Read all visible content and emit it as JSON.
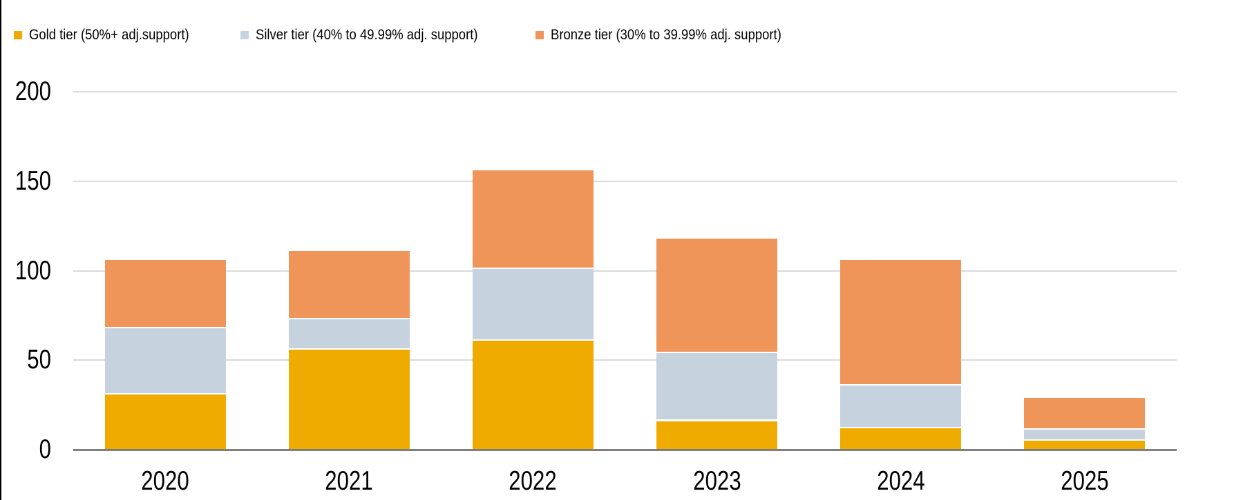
{
  "chart_data": {
    "type": "bar",
    "stacked": true,
    "title": "",
    "xlabel": "",
    "ylabel": "",
    "categories": [
      "2020",
      "2021",
      "2022",
      "2023",
      "2024",
      "2025"
    ],
    "series": [
      {
        "name": "Gold tier (50%+ adj.support)",
        "color": "#F0AB00",
        "values": [
          31,
          56,
          61,
          16,
          12,
          5
        ]
      },
      {
        "name": "Silver tier (40% to 49.99% adj. support)",
        "color": "#C7D2DF",
        "values": [
          37,
          17,
          40,
          38,
          24,
          6
        ]
      },
      {
        "name": "Bronze tier (30% to 39.99% adj. support)",
        "color": "#F0955A",
        "values": [
          38,
          38,
          55,
          64,
          70,
          18
        ]
      }
    ],
    "totals": [
      106,
      111,
      156,
      118,
      106,
      29
    ],
    "yticks": [
      0,
      50,
      100,
      150,
      200
    ],
    "ylim": [
      0,
      200
    ],
    "grid": true,
    "legend_position": "top-left",
    "axis_colors": {
      "gridline": "#DADADA",
      "baseline": "#7F7F7F",
      "text": "#000000",
      "left_edge_border": "#000000"
    }
  }
}
